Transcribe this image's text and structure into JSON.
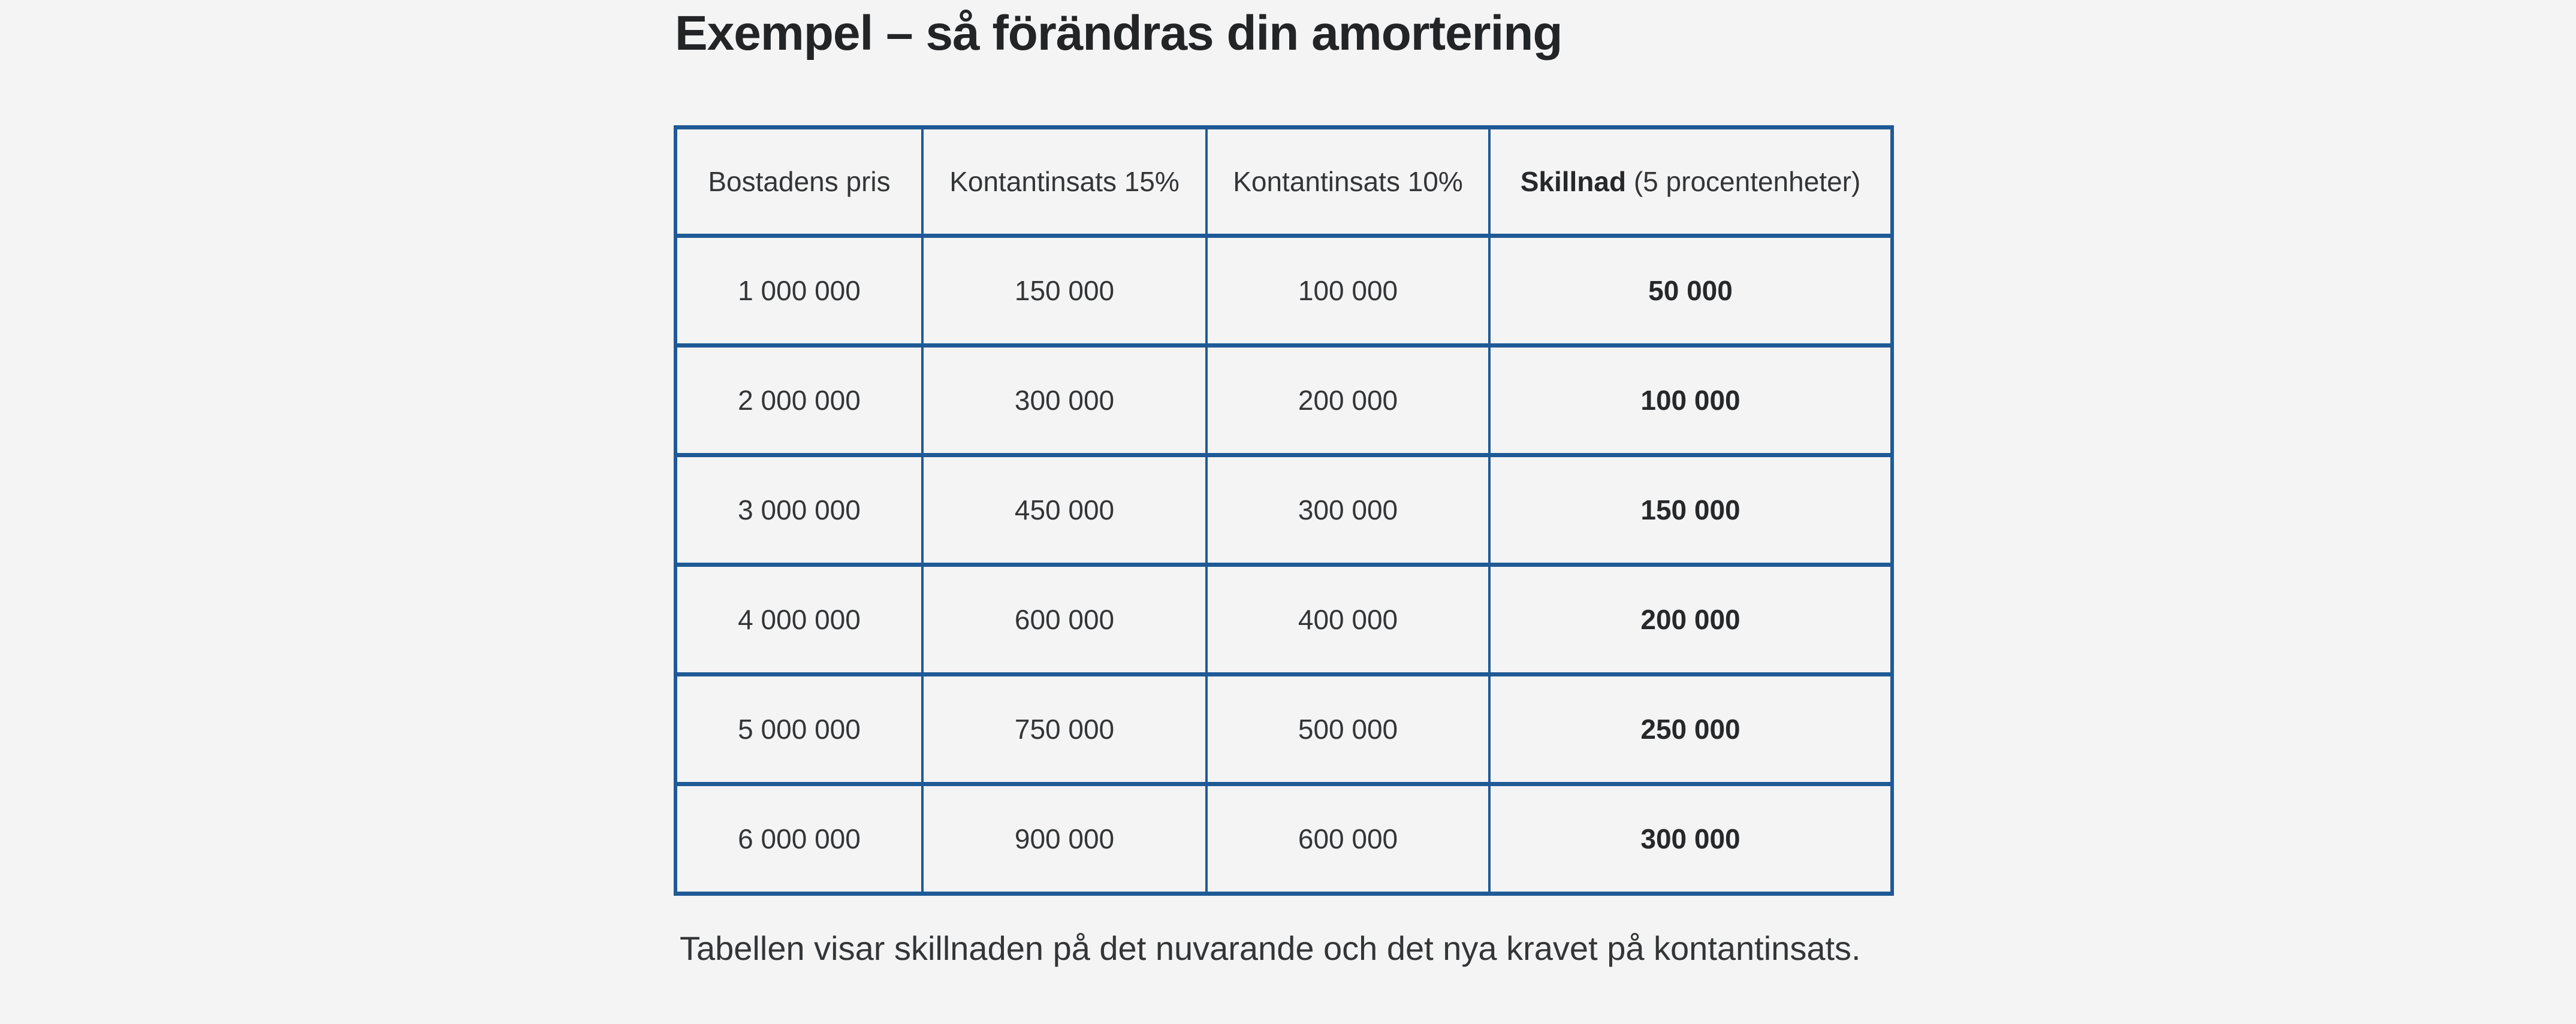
{
  "page": {
    "background": "#f4f4f5",
    "accent_border_color": "#1f5a96",
    "title": "Exempel – så förändras din amortering"
  },
  "table": {
    "headers": [
      {
        "label": "Bostadens pris"
      },
      {
        "label": "Kontantinsats 15%"
      },
      {
        "label": "Kontantinsats 10%"
      },
      {
        "label_bold": "Skillnad",
        "label_normal": " (5 procentenheter)"
      }
    ],
    "rows": [
      [
        "1 000 000",
        "150 000",
        "100 000",
        "50 000"
      ],
      [
        "2 000 000",
        "300 000",
        "200 000",
        "100 000"
      ],
      [
        "3 000 000",
        "450 000",
        "300 000",
        "150 000"
      ],
      [
        "4 000 000",
        "600 000",
        "400 000",
        "200 000"
      ],
      [
        "5 000 000",
        "750 000",
        "500 000",
        "250 000"
      ],
      [
        "6 000 000",
        "900 000",
        "600 000",
        "300 000"
      ]
    ]
  },
  "caption": "Tabellen visar skillnaden på det nuvarande och det nya kravet på kontantinsats.",
  "chart_data": {
    "type": "table",
    "title": "Exempel – så förändras din amortering",
    "columns": [
      "Bostadens pris",
      "Kontantinsats 15%",
      "Kontantinsats 10%",
      "Skillnad (5 procentenheter)"
    ],
    "rows": [
      [
        1000000,
        150000,
        100000,
        50000
      ],
      [
        2000000,
        300000,
        200000,
        100000
      ],
      [
        3000000,
        450000,
        300000,
        150000
      ],
      [
        4000000,
        600000,
        400000,
        200000
      ],
      [
        5000000,
        750000,
        500000,
        250000
      ],
      [
        6000000,
        900000,
        600000,
        300000
      ]
    ]
  }
}
